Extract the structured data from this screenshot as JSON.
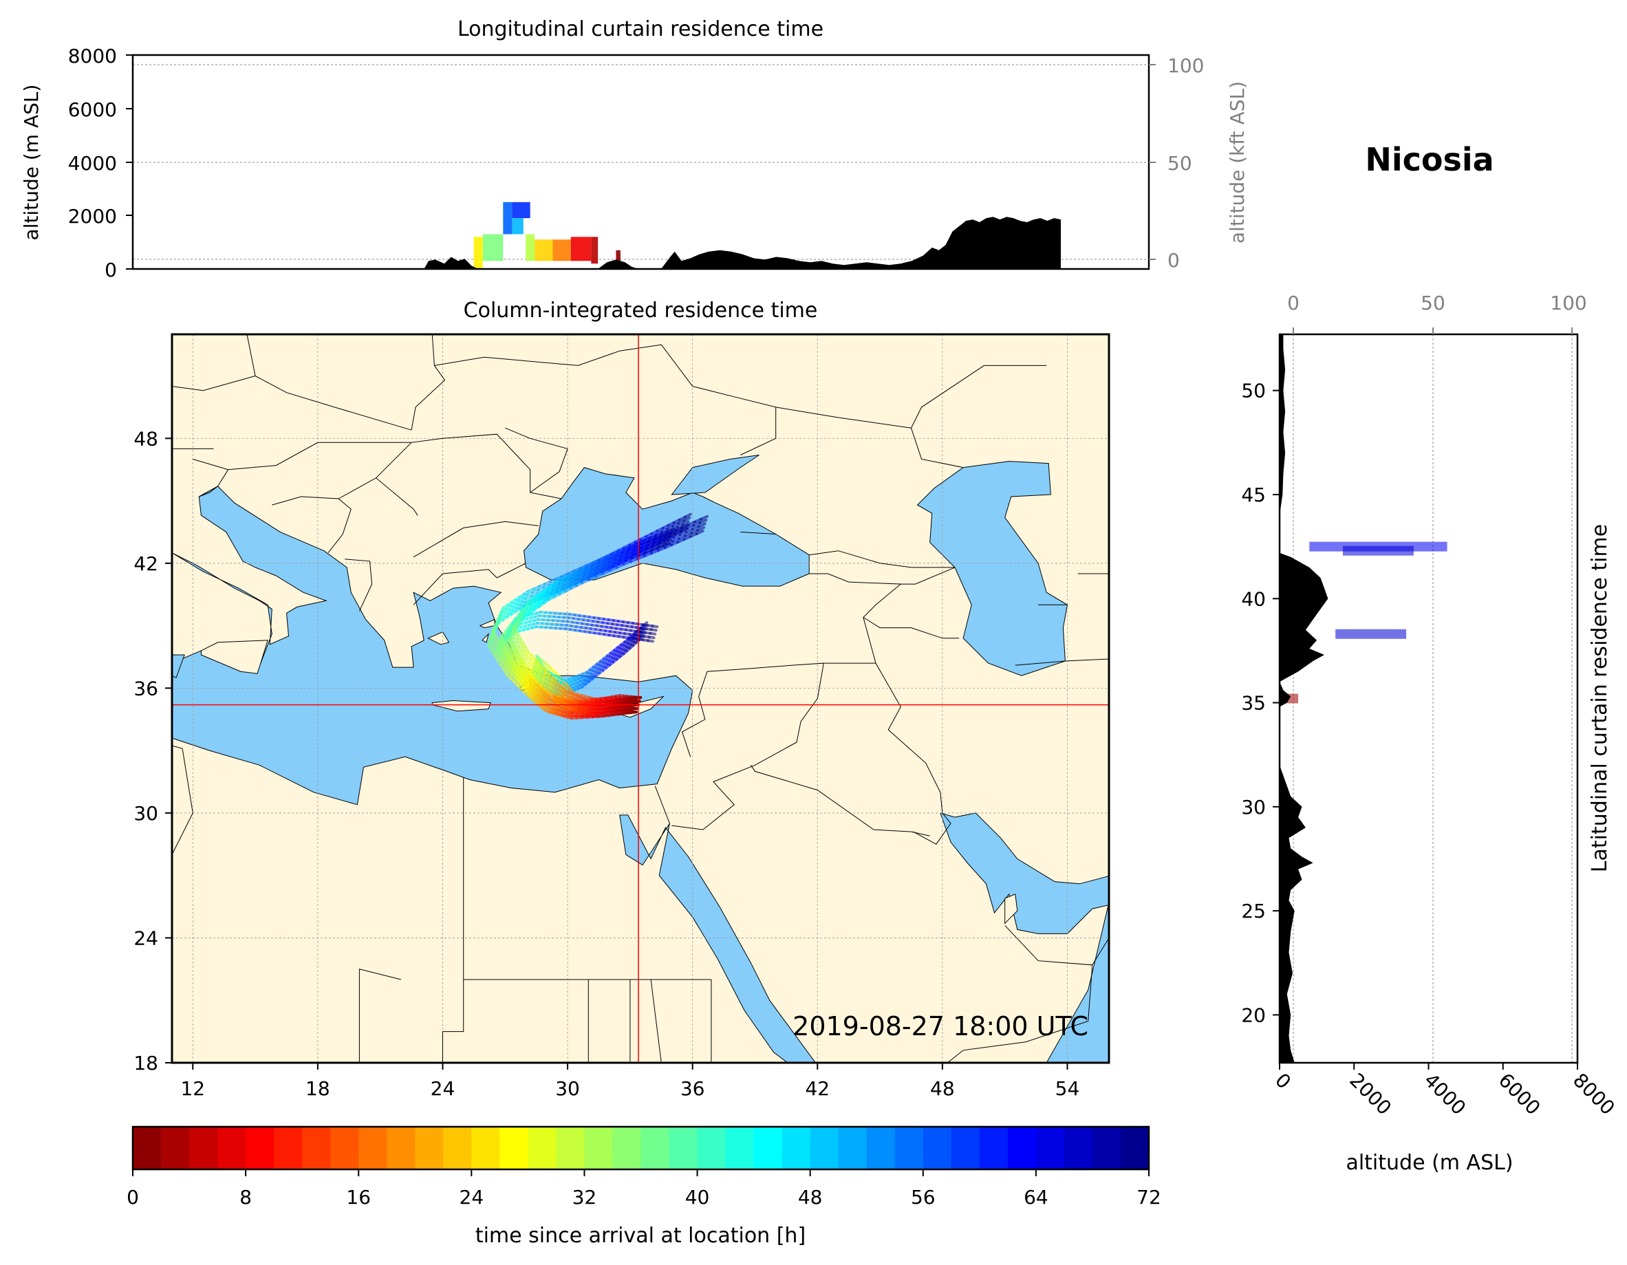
{
  "station": "Nicosia",
  "timestamp": "2019-08-27 18:00 UTC",
  "colors": {
    "sea": "#87cdf9",
    "land": "#fff6dc",
    "terrain": "#000000",
    "crosshair": "#ff0000"
  },
  "colormap": "jet_r",
  "chart_data": [
    {
      "id": "longitudinal",
      "type": "area",
      "title": "Longitudinal curtain residence time",
      "ylabel": "altitude (m ASL)",
      "ylabel_right": "altitude (kft ASL)",
      "ylim": [
        0,
        8000
      ],
      "yticks": [
        "0",
        "2000",
        "4000",
        "6000",
        "8000"
      ],
      "yticks_right": [
        "0",
        "50",
        "100"
      ],
      "xlim": [
        11,
        56
      ],
      "terrain": {
        "x": [
          23.9,
          24.1,
          24.4,
          24.8,
          25.1,
          25.4,
          25.7,
          26.0,
          26.3,
          31.6,
          32.0,
          32.4,
          32.8,
          33.1,
          33.4,
          34.4,
          34.8,
          35.0,
          35.3,
          35.7,
          36.1,
          36.5,
          37.0,
          37.5,
          38.0,
          38.5,
          39.0,
          39.5,
          40.0,
          40.5,
          41.0,
          41.5,
          42.0,
          42.5,
          43.0,
          43.5,
          44.0,
          44.5,
          45.0,
          45.5,
          46.0,
          46.4,
          46.7,
          47.0,
          47.3,
          47.6,
          47.9,
          48.2,
          48.5,
          48.8,
          49.1,
          49.4,
          49.7,
          50.0,
          50.3,
          50.6,
          50.9,
          51.2,
          51.5,
          51.8,
          52.1
        ],
        "y": [
          0,
          300,
          350,
          200,
          450,
          300,
          380,
          120,
          0,
          0,
          250,
          350,
          250,
          80,
          0,
          0,
          450,
          650,
          300,
          400,
          550,
          650,
          700,
          650,
          550,
          400,
          350,
          450,
          400,
          300,
          250,
          300,
          200,
          150,
          200,
          250,
          200,
          150,
          200,
          300,
          500,
          800,
          700,
          900,
          1400,
          1600,
          1800,
          1850,
          1750,
          1900,
          1950,
          1850,
          1950,
          1900,
          1800,
          1750,
          1850,
          1900,
          1800,
          1900,
          1850
        ]
      },
      "trajectory_segments": [
        {
          "x0": 26.1,
          "x1": 26.5,
          "y0": 0,
          "y1": 1200,
          "hours": 26
        },
        {
          "x0": 26.5,
          "x1": 27.4,
          "y0": 300,
          "y1": 1300,
          "hours": 36
        },
        {
          "x0": 27.4,
          "x1": 27.8,
          "y0": 1300,
          "y1": 2500,
          "hours": 56
        },
        {
          "x0": 27.8,
          "x1": 28.6,
          "y0": 1900,
          "y1": 2500,
          "hours": 60
        },
        {
          "x0": 27.8,
          "x1": 28.3,
          "y0": 1300,
          "y1": 1900,
          "hours": 50
        },
        {
          "x0": 28.4,
          "x1": 28.8,
          "y0": 300,
          "y1": 1300,
          "hours": 32
        },
        {
          "x0": 28.8,
          "x1": 29.6,
          "y0": 300,
          "y1": 1100,
          "hours": 24
        },
        {
          "x0": 29.6,
          "x1": 30.4,
          "y0": 300,
          "y1": 1100,
          "hours": 18
        },
        {
          "x0": 30.4,
          "x1": 31.3,
          "y0": 300,
          "y1": 1200,
          "hours": 8
        },
        {
          "x0": 31.3,
          "x1": 31.6,
          "y0": 200,
          "y1": 1200,
          "hours": 4
        },
        {
          "x0": 32.4,
          "x1": 32.6,
          "y0": 300,
          "y1": 700,
          "hours": 1
        }
      ]
    },
    {
      "id": "column",
      "type": "heatmap",
      "title": "Column-integrated residence time",
      "xlim": [
        11,
        56
      ],
      "ylim": [
        18,
        53
      ],
      "xticks": [
        "12",
        "18",
        "24",
        "30",
        "36",
        "42",
        "48",
        "54"
      ],
      "yticks": [
        "18",
        "24",
        "30",
        "36",
        "42",
        "48"
      ],
      "station_lon": 33.4,
      "station_lat": 35.2,
      "trajectories": [
        {
          "hours": [
            0,
            6,
            12,
            18,
            24,
            30,
            36,
            42,
            48,
            54,
            60,
            66,
            72
          ],
          "lon": [
            33.4,
            32.0,
            30.5,
            29.5,
            28.7,
            27.8,
            27.0,
            27.8,
            29.2,
            30.8,
            32.8,
            34.8,
            36.6
          ],
          "lat": [
            35.2,
            35.1,
            35.0,
            35.2,
            35.8,
            36.8,
            38.3,
            39.6,
            40.6,
            41.4,
            42.3,
            43.1,
            43.9
          ]
        },
        {
          "hours": [
            0,
            6,
            12,
            18,
            24,
            30,
            36,
            42,
            48,
            54,
            60,
            66,
            72
          ],
          "lon": [
            33.4,
            31.6,
            30.0,
            29.0,
            28.2,
            27.2,
            26.3,
            26.8,
            28.0,
            29.6,
            31.4,
            33.2,
            35.0
          ],
          "lat": [
            35.2,
            35.0,
            35.0,
            35.3,
            36.0,
            37.0,
            38.4,
            39.5,
            40.3,
            41.0,
            41.8,
            42.6,
            43.3
          ]
        },
        {
          "hours": [
            0,
            6,
            12,
            18,
            24,
            30,
            36,
            42,
            48,
            54,
            60,
            66,
            72
          ],
          "lon": [
            33.4,
            32.4,
            31.3,
            30.2,
            29.6,
            29.0,
            28.4,
            28.8,
            29.8,
            30.8,
            31.8,
            32.8,
            33.7
          ],
          "lat": [
            35.2,
            35.3,
            35.1,
            35.4,
            36.1,
            36.7,
            37.2,
            36.5,
            36.0,
            36.4,
            37.2,
            38.0,
            38.8
          ]
        },
        {
          "hours": [
            0,
            6,
            12,
            18,
            24,
            30,
            36,
            42,
            48,
            54,
            60,
            66,
            72
          ],
          "lon": [
            33.4,
            31.8,
            30.3,
            29.2,
            28.4,
            27.6,
            26.7,
            27.4,
            28.6,
            30.0,
            31.4,
            32.8,
            34.2
          ],
          "lat": [
            35.2,
            35.0,
            34.9,
            35.2,
            35.9,
            36.9,
            38.1,
            39.0,
            39.3,
            39.2,
            39.0,
            38.8,
            38.6
          ]
        },
        {
          "hours": [
            0,
            6,
            12,
            18,
            24,
            30,
            36,
            42,
            48,
            54,
            60,
            66,
            72
          ],
          "lon": [
            33.4,
            32.2,
            30.8,
            29.8,
            29.0,
            28.0,
            27.3,
            28.0,
            29.4,
            31.0,
            32.6,
            34.2,
            35.8
          ],
          "lat": [
            35.2,
            35.2,
            35.1,
            35.5,
            36.3,
            37.4,
            38.6,
            39.8,
            40.8,
            41.6,
            42.4,
            43.2,
            44.0
          ]
        }
      ]
    },
    {
      "id": "latitudinal",
      "type": "area",
      "ylabel": "Latitudinal curtain residence time",
      "xlabel": "altitude (m ASL)",
      "xlabel_top_ticks": [
        "0",
        "50",
        "100"
      ],
      "xticks": [
        "0",
        "2000",
        "4000",
        "6000",
        "8000"
      ],
      "xlim": [
        0,
        8000
      ],
      "yticks": [
        "20",
        "25",
        "30",
        "35",
        "40",
        "45",
        "50"
      ],
      "ylim": [
        17.7,
        52.7
      ],
      "terrain": {
        "lat": [
          17.7,
          18.3,
          19.0,
          20.0,
          21.0,
          22.0,
          23.0,
          24.0,
          25.0,
          25.5,
          26.0,
          26.5,
          27.0,
          27.3,
          27.6,
          28.0,
          28.5,
          29.0,
          29.5,
          30.0,
          30.5,
          31.0,
          31.5,
          32.0,
          34.8,
          35.0,
          35.3,
          35.6,
          36.0,
          36.2,
          36.5,
          37.0,
          37.3,
          37.6,
          38.0,
          38.5,
          39.0,
          39.5,
          40.0,
          40.5,
          41.0,
          41.5,
          42.0,
          42.2,
          44.0,
          45.0,
          46.0,
          47.0,
          48.0,
          49.0,
          50.0,
          51.0,
          52.0,
          52.7
        ],
        "alt": [
          400,
          300,
          250,
          300,
          200,
          350,
          250,
          300,
          400,
          250,
          300,
          600,
          500,
          900,
          600,
          300,
          250,
          700,
          500,
          600,
          300,
          200,
          100,
          0,
          0,
          200,
          300,
          100,
          0,
          200,
          500,
          900,
          1200,
          800,
          1000,
          700,
          900,
          1100,
          1300,
          1200,
          1100,
          800,
          300,
          0,
          0,
          80,
          100,
          150,
          100,
          150,
          100,
          150,
          100,
          100
        ]
      },
      "blobs": [
        {
          "lat": 42.5,
          "alt0": 800,
          "alt1": 4500,
          "hours": 64
        },
        {
          "lat": 42.3,
          "alt0": 1700,
          "alt1": 3600,
          "hours": 66
        },
        {
          "lat": 38.3,
          "alt0": 1500,
          "alt1": 3400,
          "hours": 66
        },
        {
          "lat": 35.2,
          "alt0": 200,
          "alt1": 500,
          "hours": 2
        }
      ]
    },
    {
      "id": "colorbar",
      "type": "heatmap",
      "xlabel": "time since arrival at location [h]",
      "xlim": [
        0,
        72
      ],
      "xticks": [
        "0",
        "8",
        "16",
        "24",
        "32",
        "40",
        "48",
        "56",
        "64",
        "72"
      ]
    }
  ]
}
